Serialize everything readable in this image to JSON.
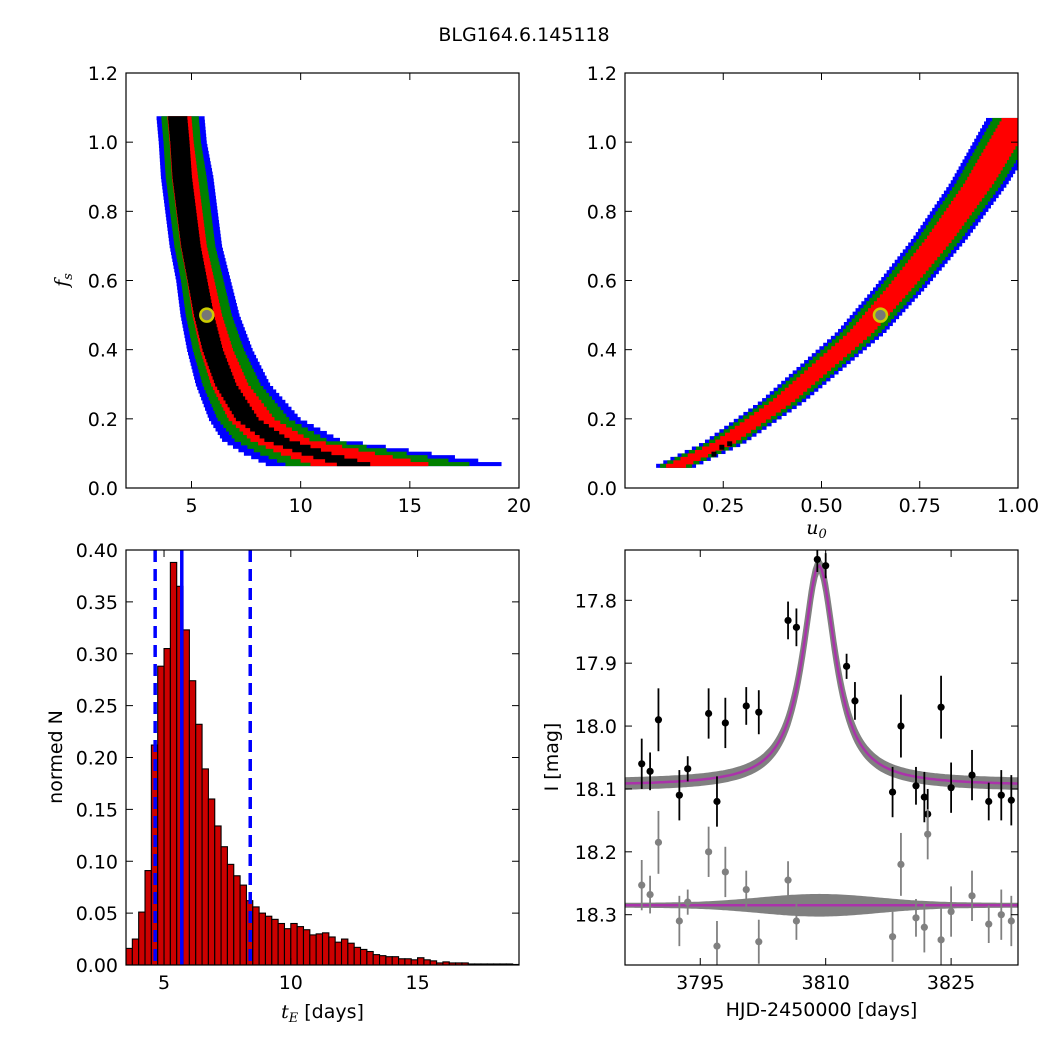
{
  "figure": {
    "title": "BLG164.6.145118"
  },
  "colors": {
    "blue": "#0000ff",
    "green": "#008000",
    "red": "#ff0000",
    "black": "#000000",
    "marker_fill": "#777777",
    "marker_edge": "#cccc00",
    "model_gray": "#808080",
    "model_magenta": "#aa33aa",
    "hist_bar": "#cc0000"
  },
  "chart_data": [
    {
      "type": "heatmap",
      "panel": "top-left",
      "xlim": [
        2,
        20
      ],
      "ylim": [
        0,
        1.2
      ],
      "x_ticks": [
        5,
        10,
        15,
        20
      ],
      "y_ticks": [
        0.0,
        0.2,
        0.4,
        0.6,
        0.8,
        1.0,
        1.2
      ],
      "xlabel": "",
      "ylabel": "f",
      "ylabel_sub": "s",
      "grid": false,
      "confidence_levels": [
        "blue",
        "green",
        "red",
        "black"
      ],
      "marker": {
        "x": 5.7,
        "y": 0.5
      },
      "fs_values": [
        0.07,
        0.1,
        0.14,
        0.2,
        0.3,
        0.4,
        0.5,
        0.6,
        0.7,
        0.8,
        0.9,
        1.0,
        1.07
      ],
      "tE_ridge": [
        12.5,
        10.8,
        9.0,
        7.6,
        6.6,
        6.0,
        5.6,
        5.3,
        5.0,
        4.8,
        4.6,
        4.5,
        4.4
      ],
      "tE_left": [
        8.4,
        7.4,
        6.4,
        5.8,
        5.2,
        4.8,
        4.5,
        4.3,
        4.0,
        3.8,
        3.6,
        3.5,
        3.4
      ],
      "tE_right": [
        19.2,
        16.0,
        11.8,
        10.0,
        8.6,
        7.8,
        7.2,
        6.8,
        6.4,
        6.2,
        6.0,
        5.7,
        5.6
      ]
    },
    {
      "type": "heatmap",
      "panel": "top-right",
      "xlim": [
        0.0,
        1.0
      ],
      "ylim": [
        0,
        1.2
      ],
      "x_ticks": [
        "0.25",
        "0.50",
        "0.75",
        "1.00"
      ],
      "y_ticks": [
        0.0,
        0.2,
        0.4,
        0.6,
        0.8,
        1.0,
        1.2
      ],
      "xlabel": "u",
      "xlabel_sub": "0",
      "ylabel": "",
      "grid": false,
      "confidence_levels": [
        "blue",
        "green",
        "red",
        "black"
      ],
      "marker": {
        "x": 0.65,
        "y": 0.5
      },
      "u0_center": [
        [
          0.13,
          0.065
        ],
        [
          0.25,
          0.13
        ],
        [
          0.4,
          0.25
        ],
        [
          0.5,
          0.35
        ],
        [
          0.6,
          0.45
        ],
        [
          0.7,
          0.58
        ],
        [
          0.8,
          0.72
        ],
        [
          0.9,
          0.88
        ],
        [
          1.0,
          1.07
        ]
      ],
      "band_halfwidth_u0": 0.035
    },
    {
      "type": "bar",
      "panel": "bottom-left",
      "xlim": [
        3.5,
        19
      ],
      "ylim": [
        0,
        0.4
      ],
      "x_ticks": [
        5,
        10,
        15
      ],
      "y_ticks": [
        "0.00",
        "0.05",
        "0.10",
        "0.15",
        "0.20",
        "0.25",
        "0.30",
        "0.35",
        "0.40"
      ],
      "xlabel_math": "t",
      "xlabel_sub": "E",
      "xlabel_text": "[days]",
      "ylabel": "normed N",
      "bin_start": 3.5,
      "bin_width": 0.25,
      "values": [
        0.016,
        0.025,
        0.051,
        0.091,
        0.212,
        0.288,
        0.305,
        0.388,
        0.365,
        0.323,
        0.274,
        0.232,
        0.189,
        0.16,
        0.134,
        0.114,
        0.097,
        0.086,
        0.077,
        0.062,
        0.056,
        0.05,
        0.047,
        0.044,
        0.04,
        0.035,
        0.04,
        0.037,
        0.034,
        0.029,
        0.03,
        0.031,
        0.027,
        0.022,
        0.025,
        0.021,
        0.017,
        0.015,
        0.013,
        0.01,
        0.009,
        0.008,
        0.008,
        0.006,
        0.006,
        0.005,
        0.007,
        0.005,
        0.004,
        0.002,
        0.003,
        0.002,
        0.002,
        0.002,
        0.001,
        0.001,
        0.001,
        0.001,
        0.001,
        0.001,
        0.001,
        0.0005
      ],
      "median": 5.7,
      "percentiles": [
        4.65,
        8.4
      ]
    },
    {
      "type": "scatter",
      "panel": "bottom-right",
      "xlim": [
        3786,
        3833
      ],
      "ylim": [
        18.38,
        17.72
      ],
      "x_ticks": [
        3795,
        3810,
        3825
      ],
      "y_ticks": [
        17.8,
        17.9,
        18.0,
        18.1,
        18.2,
        18.3
      ],
      "xlabel": "HJD-2450000 [days]",
      "ylabel": "I [mag]",
      "model": {
        "baseline": 18.095,
        "peak": 17.745,
        "t0": 3809.2,
        "residual_offset": 18.285
      },
      "series": [
        {
          "points": [
            [
              3788.0,
              18.06,
              0.04
            ],
            [
              3789.0,
              18.072,
              0.03
            ],
            [
              3790.0,
              17.99,
              0.05
            ],
            [
              3792.5,
              18.11,
              0.04
            ],
            [
              3793.5,
              18.068,
              0.02
            ],
            [
              3796.0,
              17.98,
              0.04
            ],
            [
              3797.0,
              18.12,
              0.04
            ],
            [
              3798.0,
              17.995,
              0.04
            ],
            [
              3800.5,
              17.968,
              0.03
            ],
            [
              3802.0,
              17.978,
              0.035
            ],
            [
              3805.5,
              17.832,
              0.03
            ],
            [
              3806.5,
              17.843,
              0.03
            ],
            [
              3809.0,
              17.735,
              0.02
            ],
            [
              3810.0,
              17.745,
              0.02
            ],
            [
              3812.5,
              17.905,
              0.02
            ],
            [
              3813.5,
              17.96,
              0.03
            ],
            [
              3818.0,
              18.105,
              0.04
            ],
            [
              3819.0,
              18.0,
              0.05
            ],
            [
              3820.8,
              18.095,
              0.03
            ],
            [
              3821.8,
              18.113,
              0.04
            ],
            [
              3822.2,
              18.14,
              0.04
            ],
            [
              3823.8,
              17.97,
              0.05
            ],
            [
              3825.0,
              18.098,
              0.04
            ],
            [
              3827.5,
              18.078,
              0.04
            ],
            [
              3829.5,
              18.12,
              0.03
            ],
            [
              3831.0,
              18.11,
              0.04
            ],
            [
              3832.2,
              18.118,
              0.04
            ]
          ]
        },
        {
          "points": [
            [
              3788.0,
              18.253,
              0.04
            ],
            [
              3789.0,
              18.268,
              0.03
            ],
            [
              3790.0,
              18.185,
              0.05
            ],
            [
              3792.5,
              18.31,
              0.04
            ],
            [
              3793.5,
              18.28,
              0.02
            ],
            [
              3796.0,
              18.2,
              0.04
            ],
            [
              3797.0,
              18.35,
              0.04
            ],
            [
              3798.0,
              18.232,
              0.04
            ],
            [
              3800.5,
              18.26,
              0.03
            ],
            [
              3802.0,
              18.343,
              0.035
            ],
            [
              3805.5,
              18.245,
              0.03
            ],
            [
              3806.5,
              18.31,
              0.03
            ],
            [
              3818.0,
              18.335,
              0.04
            ],
            [
              3819.0,
              18.22,
              0.05
            ],
            [
              3820.8,
              18.305,
              0.03
            ],
            [
              3821.8,
              18.32,
              0.04
            ],
            [
              3822.2,
              18.172,
              0.04
            ],
            [
              3823.8,
              18.34,
              0.05
            ],
            [
              3825.0,
              18.295,
              0.04
            ],
            [
              3827.5,
              18.27,
              0.04
            ],
            [
              3829.5,
              18.315,
              0.03
            ],
            [
              3831.0,
              18.3,
              0.04
            ],
            [
              3832.2,
              18.31,
              0.04
            ]
          ]
        }
      ]
    }
  ]
}
